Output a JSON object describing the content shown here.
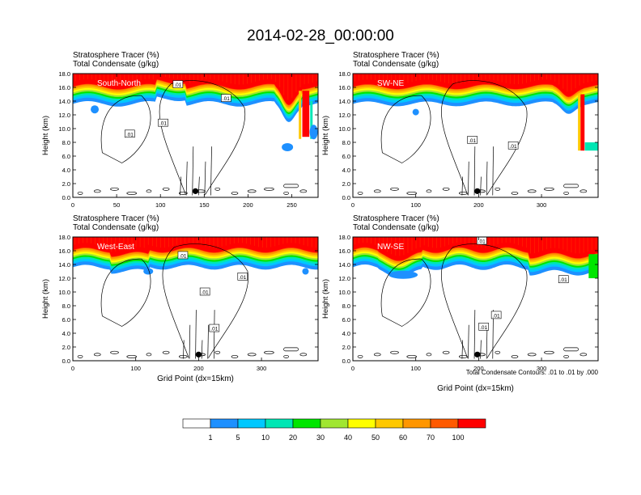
{
  "title": "2014-02-28_00:00:00",
  "contour_note": "Total Condensate Contours: .01 to .01 by .000",
  "colors": {
    "levels": [
      "#ffffff",
      "#1e90ff",
      "#00c8ff",
      "#00e6b4",
      "#00e600",
      "#a0e632",
      "#ffff00",
      "#ffc800",
      "#ff9600",
      "#ff5a00",
      "#ff0000"
    ],
    "plume_core": "#ff0000"
  },
  "colorbar": {
    "labels": [
      "1",
      "5",
      "10",
      "20",
      "30",
      "40",
      "50",
      "60",
      "70",
      "100"
    ]
  },
  "chart_data": [
    {
      "type": "heatmap",
      "name": "South-North",
      "title_line1": "Stratosphere Tracer   (%)",
      "title_line2": "Total Condensate   (g/kg)",
      "xlabel": "",
      "ylabel": "Height (km)",
      "xlim": [
        0,
        280
      ],
      "ylim": [
        0,
        18
      ],
      "xticks": [
        0,
        50,
        100,
        150,
        200,
        250
      ],
      "xtick_labels": [
        "0",
        "50",
        "100",
        "150",
        "200",
        "250"
      ],
      "yticks": [
        0,
        2,
        4,
        6,
        8,
        10,
        12,
        14,
        16,
        18
      ],
      "ytick_labels": [
        "0.0",
        "2.0",
        "4.0",
        "6.0",
        "8.0",
        "10.0",
        "12.0",
        "14.0",
        "16.0",
        "18.0"
      ],
      "marker_x": 140,
      "contour_labels": [
        {
          "x": 65,
          "y": 9.2,
          "text": ".01"
        },
        {
          "x": 103,
          "y": 10.8,
          "text": ".01"
        },
        {
          "x": 120,
          "y": 16.4,
          "text": ".01"
        },
        {
          "x": 175,
          "y": 14.4,
          "text": ".01"
        }
      ]
    },
    {
      "type": "heatmap",
      "name": "SW-NE",
      "title_line1": "Stratosphere Tracer   (%)",
      "title_line2": "Total Condensate   (g/kg)",
      "xlabel": "",
      "ylabel": "Height (km)",
      "xlim": [
        0,
        390
      ],
      "ylim": [
        0,
        18
      ],
      "xticks": [
        0,
        100,
        200,
        300
      ],
      "xtick_labels": [
        "0",
        "100",
        "200",
        "300"
      ],
      "yticks": [
        0,
        2,
        4,
        6,
        8,
        10,
        12,
        14,
        16,
        18
      ],
      "ytick_labels": [
        "0.0",
        "2.0",
        "4.0",
        "6.0",
        "8.0",
        "10.0",
        "12.0",
        "14.0",
        "16.0",
        "18.0"
      ],
      "marker_x": 198,
      "contour_labels": [
        {
          "x": 190,
          "y": 8.3,
          "text": ".01"
        },
        {
          "x": 255,
          "y": 7.5,
          "text": ".01"
        }
      ]
    },
    {
      "type": "heatmap",
      "name": "West-East",
      "title_line1": "Stratosphere Tracer   (%)",
      "title_line2": "Total Condensate   (g/kg)",
      "xlabel": "Grid Point (dx=15km)",
      "ylabel": "Height (km)",
      "xlim": [
        0,
        390
      ],
      "ylim": [
        0,
        18
      ],
      "xticks": [
        0,
        100,
        200,
        300
      ],
      "xtick_labels": [
        "0",
        "100",
        "200",
        "300"
      ],
      "yticks": [
        0,
        2,
        4,
        6,
        8,
        10,
        12,
        14,
        16,
        18
      ],
      "ytick_labels": [
        "0.0",
        "2.0",
        "4.0",
        "6.0",
        "8.0",
        "10.0",
        "12.0",
        "14.0",
        "16.0",
        "18.0"
      ],
      "marker_x": 200,
      "contour_labels": [
        {
          "x": 175,
          "y": 15.3,
          "text": ".01"
        },
        {
          "x": 210,
          "y": 10.0,
          "text": ".01"
        },
        {
          "x": 270,
          "y": 12.2,
          "text": ".01"
        },
        {
          "x": 225,
          "y": 4.7,
          "text": ".01"
        }
      ]
    },
    {
      "type": "heatmap",
      "name": "NW-SE",
      "title_line1": "Stratosphere Tracer   (%)",
      "title_line2": "Total Condensate   (g/kg)",
      "xlabel": "Grid Point (dx=15km)",
      "ylabel": "Height (km)",
      "xlim": [
        0,
        390
      ],
      "ylim": [
        0,
        18
      ],
      "xticks": [
        0,
        100,
        200,
        300
      ],
      "xtick_labels": [
        "0",
        "100",
        "200",
        "300"
      ],
      "yticks": [
        0,
        2,
        4,
        6,
        8,
        10,
        12,
        14,
        16,
        18
      ],
      "ytick_labels": [
        "0.0",
        "2.0",
        "4.0",
        "6.0",
        "8.0",
        "10.0",
        "12.0",
        "14.0",
        "16.0",
        "18.0"
      ],
      "marker_x": 198,
      "contour_labels": [
        {
          "x": 205,
          "y": 17.4,
          "text": ".01"
        },
        {
          "x": 335,
          "y": 11.8,
          "text": ".01"
        },
        {
          "x": 228,
          "y": 6.6,
          "text": ".01"
        },
        {
          "x": 208,
          "y": 4.9,
          "text": ".01"
        }
      ]
    }
  ]
}
